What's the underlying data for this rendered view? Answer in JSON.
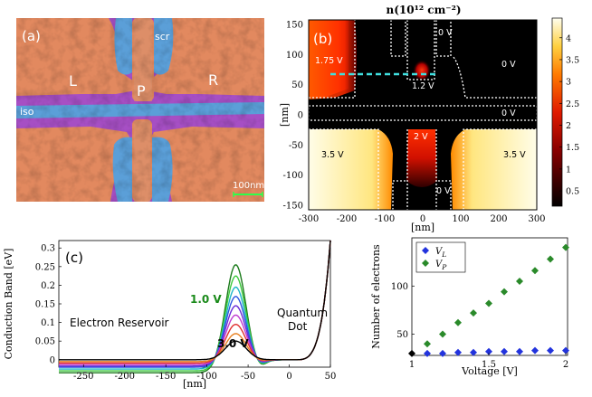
{
  "panel_a": {
    "label": "(a)",
    "labels": {
      "scr": "scr",
      "L": "L",
      "P": "P",
      "R": "R",
      "iso": "iso"
    },
    "scalebar": "100nm",
    "colors": {
      "substrate": "#a64fc4",
      "gate": "#e2895f",
      "screen": "#5b9fd8"
    }
  },
  "panel_b": {
    "label": "(b)",
    "title": "n(10¹² cm⁻²)",
    "voltages": [
      "0 V",
      "0 V",
      "1.75 V",
      "1.2 V",
      "0 V",
      "2 V",
      "3.5 V",
      "3.5 V",
      "0 V"
    ],
    "colorbar_ticks": [
      "4",
      "3.5",
      "3",
      "2.5",
      "2",
      "1.5",
      "1",
      "0.5"
    ],
    "colorbar_positions": [
      4,
      3.5,
      3,
      2.5,
      2,
      1.5,
      1,
      0.5
    ],
    "xticks": [
      "-300",
      "-200",
      "-100",
      "0",
      "100",
      "200",
      "300"
    ],
    "xtick_values": [
      -300,
      -200,
      -100,
      0,
      100,
      200,
      300
    ],
    "yticks": [
      "150",
      "100",
      "50",
      "0",
      "-50",
      "-100",
      "-150"
    ],
    "ytick_values": [
      150,
      100,
      50,
      0,
      -50,
      -100,
      -150
    ],
    "xlabel": "[nm]",
    "ylabel": "[nm]"
  },
  "panel_c": {
    "label": "(c)",
    "ylabel": "Conduction Band [eV]",
    "xlabel": "[nm]",
    "xticks": [
      "-250",
      "-200",
      "-150",
      "-100",
      "-50",
      "0",
      "50"
    ],
    "xtick_values": [
      -250,
      -200,
      -150,
      -100,
      -50,
      0,
      50
    ],
    "yticks": [
      "0.3",
      "0.25",
      "0.2",
      "0.15",
      "0.1",
      "0.05",
      "0"
    ],
    "ytick_values": [
      0.3,
      0.25,
      0.2,
      0.15,
      0.1,
      0.05,
      0
    ],
    "annotations": {
      "reservoir": "Electron Reservoir",
      "qd1": "Quantum",
      "qd2": "Dot",
      "v1": "1.0 V",
      "v3": "3.0 V"
    }
  },
  "chart_data": [
    {
      "type": "line",
      "xlabel": "[nm]",
      "ylabel": "Conduction Band [eV]",
      "xlim": [
        -280,
        50
      ],
      "ylim": [
        -0.02,
        0.32
      ],
      "series": [
        {
          "name": "1.0 V",
          "color": "#1a7a1a",
          "peak": 0.255,
          "reservoir": -0.035
        },
        {
          "color": "#3cc93c",
          "peak": 0.225,
          "reservoir": -0.03
        },
        {
          "color": "#1fb6c8",
          "peak": 0.195,
          "reservoir": -0.025
        },
        {
          "color": "#2a55e0",
          "peak": 0.17,
          "reservoir": -0.02
        },
        {
          "color": "#6a2bd6",
          "peak": 0.145,
          "reservoir": -0.017
        },
        {
          "color": "#c03ad0",
          "peak": 0.12,
          "reservoir": -0.013
        },
        {
          "color": "#e03030",
          "peak": 0.095,
          "reservoir": -0.009
        },
        {
          "color": "#e88020",
          "peak": 0.07,
          "reservoir": -0.005
        },
        {
          "name": "3.0 V",
          "color": "#000000",
          "peak": 0.05,
          "reservoir": 0.0
        }
      ]
    },
    {
      "type": "scatter",
      "xlabel": "Voltage [V]",
      "ylabel": "Number of electrons",
      "xlim": [
        1,
        2
      ],
      "ylim": [
        28,
        150
      ],
      "xticks": [
        "1",
        "1.5",
        "2"
      ],
      "xtick_values": [
        1,
        1.5,
        2
      ],
      "yticks": [
        "50",
        "100"
      ],
      "ytick_values": [
        50,
        100
      ],
      "series": [
        {
          "name": "V_L",
          "color": "#2233dd",
          "x": [
            1.1,
            1.2,
            1.3,
            1.4,
            1.5,
            1.6,
            1.7,
            1.8,
            1.9,
            2.0
          ],
          "y": [
            30,
            30,
            31,
            31,
            32,
            32,
            32,
            33,
            33,
            33
          ]
        },
        {
          "name": "V_P",
          "color": "#2a8a2a",
          "x": [
            1.1,
            1.2,
            1.3,
            1.4,
            1.5,
            1.6,
            1.7,
            1.8,
            1.9,
            2.0
          ],
          "y": [
            40,
            50,
            62,
            72,
            82,
            94,
            105,
            116,
            128,
            140
          ]
        },
        {
          "color": "#000000",
          "x": [
            1.0
          ],
          "y": [
            30
          ]
        }
      ]
    }
  ]
}
